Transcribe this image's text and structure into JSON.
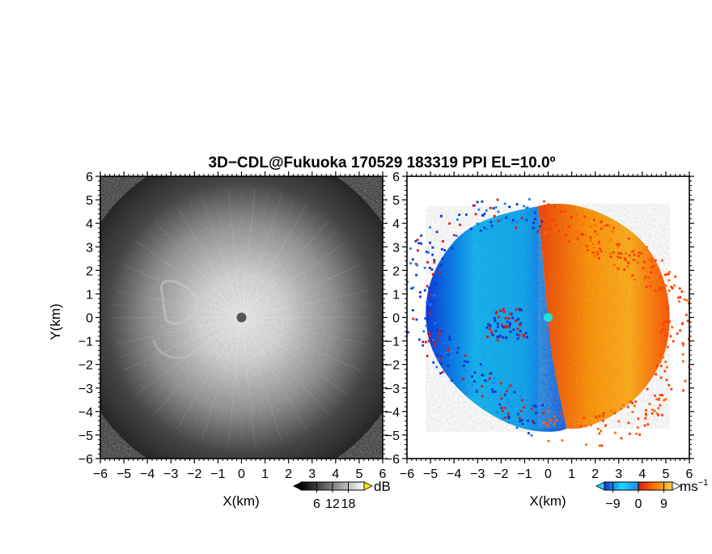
{
  "figure": {
    "title": "3D−CDL@Fukuoka 170529 183319 PPI EL=10.0º"
  },
  "chart_data": [
    {
      "type": "heatmap",
      "name": "reflectivity",
      "xlabel": "X(km)",
      "ylabel": "Y(km)",
      "xlim": [
        -6,
        6
      ],
      "ylim": [
        -6,
        6
      ],
      "xticks": [
        "−6",
        "−5",
        "−4",
        "−3",
        "−2",
        "−1",
        "0",
        "1",
        "2",
        "3",
        "4",
        "5",
        "6"
      ],
      "yticks": [
        "−6",
        "−5",
        "−4",
        "−3",
        "−2",
        "−1",
        "0",
        "1",
        "2",
        "3",
        "4",
        "5",
        "6"
      ],
      "colorbar": {
        "label": "dB",
        "ticks": [
          "6",
          "12",
          "18"
        ],
        "tick_values": [
          6,
          12,
          18
        ],
        "range": [
          0,
          24
        ],
        "colors": [
          "#000000",
          "#ffffff"
        ],
        "extend": "both"
      },
      "description_fields": {
        "radar_center": [
          0,
          0
        ],
        "max_range_km": 6
      }
    },
    {
      "type": "heatmap",
      "name": "doppler-velocity",
      "xlabel": "X(km)",
      "ylabel": "",
      "xlim": [
        -6,
        6
      ],
      "ylim": [
        -6,
        6
      ],
      "xticks": [
        "−6",
        "−5",
        "−4",
        "−3",
        "−2",
        "−1",
        "0",
        "1",
        "2",
        "3",
        "4",
        "5",
        "6"
      ],
      "yticks": [
        "−6",
        "−5",
        "−4",
        "−3",
        "−2",
        "−1",
        "0",
        "1",
        "2",
        "3",
        "4",
        "5",
        "6"
      ],
      "colorbar": {
        "label": "ms",
        "label_sup": "−1",
        "ticks": [
          "−9",
          "0",
          "9"
        ],
        "tick_values": [
          -9,
          0,
          9
        ],
        "range": [
          -12,
          12
        ],
        "colors": [
          "#0a35d8",
          "#1fd6ff",
          "#d81818",
          "#ff7a00",
          "#ffd24a"
        ],
        "extend": "both"
      },
      "description_fields": {
        "radar_center": [
          0,
          0
        ],
        "max_range_km": 5.3
      }
    }
  ]
}
